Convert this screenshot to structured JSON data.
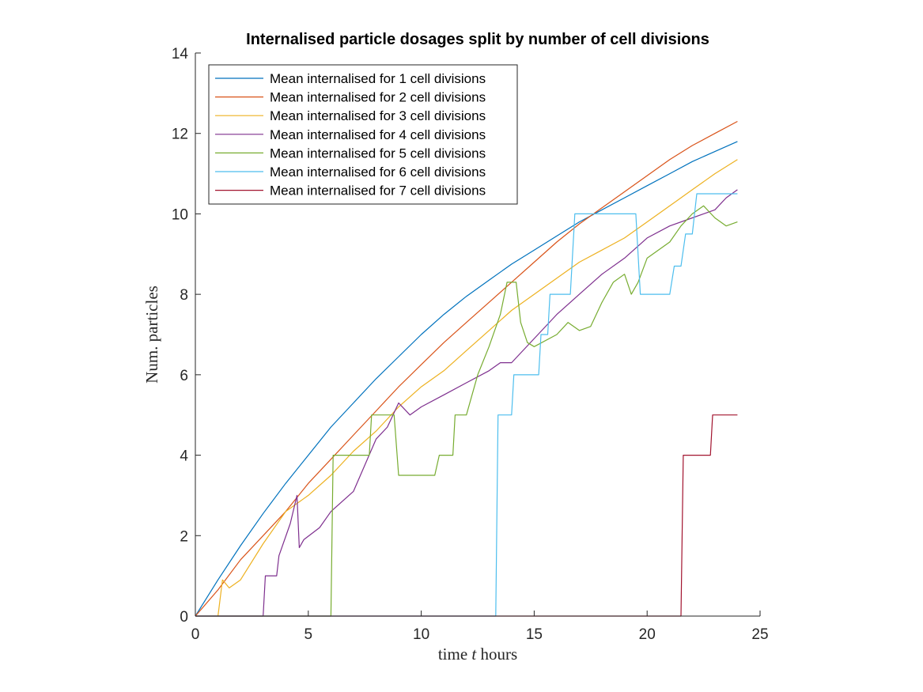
{
  "chart_data": {
    "type": "line",
    "title": "Internalised particle dosages split by number of cell divisions",
    "xlabel_prefix": "time ",
    "xlabel_var": "t",
    "xlabel_suffix": " hours",
    "ylabel": "Num. particles",
    "xlim": [
      0,
      25
    ],
    "ylim": [
      0,
      14
    ],
    "xticks": [
      0,
      5,
      10,
      15,
      20,
      25
    ],
    "yticks": [
      0,
      2,
      4,
      6,
      8,
      10,
      12,
      14
    ],
    "grid": false,
    "legend_position": "top-left",
    "series": [
      {
        "name": "Mean internalised for 1 cell divisions",
        "color": "#0072BD",
        "x": [
          0,
          1,
          2,
          3,
          4,
          5,
          6,
          7,
          8,
          9,
          10,
          11,
          12,
          13,
          14,
          15,
          16,
          17,
          18,
          19,
          20,
          21,
          22,
          23,
          24
        ],
        "y": [
          0,
          0.9,
          1.75,
          2.55,
          3.3,
          4.0,
          4.7,
          5.3,
          5.9,
          6.45,
          7.0,
          7.5,
          7.95,
          8.35,
          8.75,
          9.1,
          9.45,
          9.8,
          10.1,
          10.4,
          10.7,
          11.0,
          11.3,
          11.55,
          11.8
        ]
      },
      {
        "name": "Mean internalised for 2 cell divisions",
        "color": "#D95319",
        "x": [
          0,
          1,
          2,
          3,
          4,
          5,
          6,
          7,
          8,
          9,
          10,
          11,
          12,
          13,
          14,
          15,
          16,
          17,
          18,
          19,
          20,
          21,
          22,
          23,
          24
        ],
        "y": [
          0,
          0.65,
          1.4,
          2.0,
          2.6,
          3.3,
          3.9,
          4.5,
          5.1,
          5.7,
          6.25,
          6.8,
          7.3,
          7.8,
          8.3,
          8.8,
          9.3,
          9.75,
          10.15,
          10.55,
          10.95,
          11.35,
          11.7,
          12.0,
          12.3
        ]
      },
      {
        "name": "Mean internalised for 3 cell divisions",
        "color": "#EDB120",
        "x": [
          1.0,
          1.2,
          1.5,
          2.0,
          3.0,
          4.0,
          5.0,
          6.0,
          7.0,
          8.0,
          9.0,
          10.0,
          11.0,
          12.0,
          13.0,
          14.0,
          15.0,
          16.0,
          17.0,
          18.0,
          19.0,
          20.0,
          21.0,
          22.0,
          23.0,
          24.0
        ],
        "y": [
          0,
          0.9,
          0.7,
          0.9,
          1.8,
          2.6,
          3.0,
          3.5,
          4.1,
          4.6,
          5.2,
          5.7,
          6.1,
          6.6,
          7.1,
          7.6,
          8.0,
          8.4,
          8.8,
          9.1,
          9.4,
          9.8,
          10.2,
          10.6,
          11.0,
          11.35
        ]
      },
      {
        "name": "Mean internalised for 4 cell divisions",
        "color": "#7E2F8E",
        "x": [
          0,
          3.0,
          3.1,
          3.6,
          3.7,
          4.2,
          4.5,
          4.6,
          4.8,
          5.5,
          6.0,
          7.0,
          8.0,
          8.5,
          9.0,
          9.5,
          10.0,
          11.0,
          12.0,
          13.0,
          13.5,
          14.0,
          15.0,
          16.0,
          17.0,
          18.0,
          19.0,
          20.0,
          21.0,
          22.0,
          23.0,
          23.5,
          24.0
        ],
        "y": [
          0,
          0,
          1.0,
          1.0,
          1.5,
          2.3,
          3.0,
          1.7,
          1.9,
          2.2,
          2.6,
          3.1,
          4.4,
          4.7,
          5.3,
          5.0,
          5.2,
          5.5,
          5.8,
          6.1,
          6.3,
          6.3,
          6.9,
          7.5,
          8.0,
          8.5,
          8.9,
          9.4,
          9.7,
          9.9,
          10.1,
          10.4,
          10.6
        ]
      },
      {
        "name": "Mean internalised for 5 cell divisions",
        "color": "#77AC30",
        "x": [
          0,
          6.0,
          6.1,
          7.7,
          7.8,
          8.8,
          9.0,
          10.6,
          10.8,
          11.4,
          11.5,
          12.0,
          12.5,
          13.0,
          13.5,
          13.8,
          14.2,
          14.4,
          14.7,
          15.0,
          16.0,
          16.5,
          17.0,
          17.5,
          18.0,
          18.5,
          19.0,
          19.3,
          19.6,
          20.0,
          21.0,
          21.5,
          22.0,
          22.5,
          23.0,
          23.5,
          24.0
        ],
        "y": [
          0,
          0,
          4.0,
          4.0,
          5.0,
          5.0,
          3.5,
          3.5,
          4.0,
          4.0,
          5.0,
          5.0,
          6.0,
          6.7,
          7.5,
          8.3,
          8.3,
          7.3,
          6.8,
          6.7,
          7.0,
          7.3,
          7.1,
          7.2,
          7.8,
          8.3,
          8.5,
          8.0,
          8.3,
          8.9,
          9.3,
          9.7,
          10.0,
          10.2,
          9.9,
          9.7,
          9.8
        ]
      },
      {
        "name": "Mean internalised for 6 cell divisions",
        "color": "#4DBEEE",
        "x": [
          0,
          13.3,
          13.4,
          14.0,
          14.1,
          15.2,
          15.3,
          15.6,
          15.7,
          16.0,
          16.1,
          16.6,
          16.8,
          17.5,
          18.5,
          19.5,
          19.7,
          20.0,
          20.5,
          21.0,
          21.2,
          21.5,
          21.7,
          22.0,
          22.2,
          23.0,
          24.0
        ],
        "y": [
          0,
          0,
          5.0,
          5.0,
          6.0,
          6.0,
          7.0,
          7.0,
          8.0,
          8.0,
          8.0,
          8.0,
          10.0,
          10.0,
          10.0,
          10.0,
          8.0,
          8.0,
          8.0,
          8.0,
          8.7,
          8.7,
          9.5,
          9.5,
          10.5,
          10.5,
          10.5
        ]
      },
      {
        "name": "Mean internalised for 7 cell divisions",
        "color": "#A2142F",
        "x": [
          0,
          21.5,
          21.6,
          22.2,
          22.8,
          22.9,
          23.3,
          24.0
        ],
        "y": [
          0,
          0,
          4.0,
          4.0,
          4.0,
          5.0,
          5.0,
          5.0
        ]
      }
    ]
  }
}
